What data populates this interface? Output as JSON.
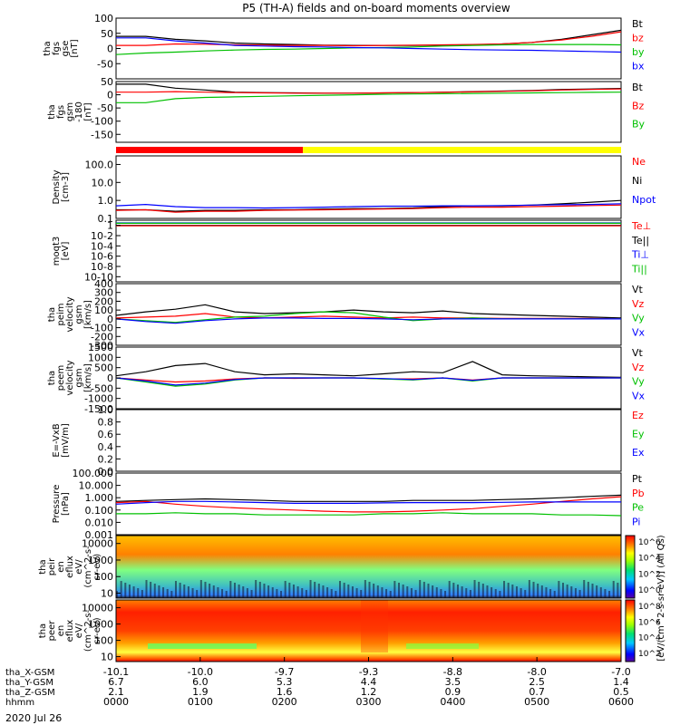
{
  "chart_data": {
    "type": "line",
    "title": "P5 (TH-A) fields and on-board moments overview",
    "time_axis": {
      "ticks": [
        "0000",
        "0100",
        "0200",
        "0300",
        "0400",
        "0500",
        "0600"
      ],
      "rows": [
        {
          "label": "tha_X-GSM",
          "values": [
            "-10.1",
            "-10.0",
            "-9.7",
            "-9.3",
            "-8.8",
            "-8.0",
            "-7.0"
          ]
        },
        {
          "label": "tha_Y-GSM",
          "values": [
            "6.7",
            "6.0",
            "5.3",
            "4.4",
            "3.5",
            "2.5",
            "1.4"
          ]
        },
        {
          "label": "tha_Z-GSM",
          "values": [
            "2.1",
            "1.9",
            "1.6",
            "1.2",
            "0.9",
            "0.7",
            "0.5"
          ]
        },
        {
          "label": "hhmm",
          "values": []
        }
      ],
      "date": "2020 Jul 26"
    },
    "panels": [
      {
        "id": "fgs",
        "ylabel": [
          "tha",
          "fgs",
          "gse",
          "[nT]"
        ],
        "scale": "linear",
        "ticks": [
          "100",
          "50",
          "0",
          "-50"
        ],
        "yrange": [
          -100,
          100
        ],
        "legend": [
          {
            "name": "Bt",
            "color": "#000000"
          },
          {
            "name": "bz",
            "color": "#ff0000"
          },
          {
            "name": "by",
            "color": "#00c000"
          },
          {
            "name": "bx",
            "color": "#0000ff"
          }
        ]
      },
      {
        "id": "fgs_gsm",
        "ylabel": [
          "tha",
          "fgs",
          "gsm",
          "-180",
          " [nT]"
        ],
        "scale": "linear",
        "ticks": [
          "50",
          "0",
          "-50",
          "-100",
          "-150"
        ],
        "yrange": [
          -180,
          50
        ],
        "legend": [
          {
            "name": "Bt",
            "color": "#000000"
          },
          {
            "name": "Bz",
            "color": "#ff0000"
          },
          {
            "name": "By",
            "color": "#00c000"
          }
        ]
      },
      {
        "id": "density",
        "ylabel": [
          "Density",
          "[cm-3]"
        ],
        "scale": "log",
        "ticks": [
          "100.0",
          "10.0",
          "1.0",
          "0.1"
        ],
        "yrange": [
          0.1,
          300
        ],
        "legend": [
          {
            "name": "Ne",
            "color": "#ff0000"
          },
          {
            "name": "Ni",
            "color": "#000000"
          },
          {
            "name": "Npot",
            "color": "#0000ff"
          }
        ]
      },
      {
        "id": "temp",
        "ylabel": [
          "moqt3",
          "[eV]"
        ],
        "scale": "log",
        "ticks": [
          "1",
          "10-2",
          "10-4",
          "10-6",
          "10-8",
          "10-10"
        ],
        "yrange": [
          1e-11,
          10
        ],
        "legend": [
          {
            "name": "Te⊥",
            "color": "#ff0000"
          },
          {
            "name": "Te||",
            "color": "#000000"
          },
          {
            "name": "Ti⊥",
            "color": "#0000ff"
          },
          {
            "name": "Ti||",
            "color": "#00c000"
          }
        ]
      },
      {
        "id": "vi",
        "ylabel": [
          "tha",
          "peim",
          "velocity",
          "gsm",
          "[km/s]"
        ],
        "scale": "linear",
        "ticks": [
          "400",
          "300",
          "200",
          "100",
          "0",
          "-100",
          "-200",
          "-300"
        ],
        "yrange": [
          -300,
          400
        ],
        "legend": [
          {
            "name": "Vt",
            "color": "#000000"
          },
          {
            "name": "Vz",
            "color": "#ff0000"
          },
          {
            "name": "Vy",
            "color": "#00c000"
          },
          {
            "name": "Vx",
            "color": "#0000ff"
          }
        ]
      },
      {
        "id": "ve",
        "ylabel": [
          "tha",
          "peem",
          "velocity",
          "gsm",
          "[km/s]"
        ],
        "scale": "linear",
        "ticks": [
          "1500",
          "1000",
          "500",
          "0",
          "-500",
          "-1000",
          "-1500"
        ],
        "yrange": [
          -1500,
          1500
        ],
        "legend": [
          {
            "name": "Vt",
            "color": "#000000"
          },
          {
            "name": "Vz",
            "color": "#ff0000"
          },
          {
            "name": "Vy",
            "color": "#00c000"
          },
          {
            "name": "Vx",
            "color": "#0000ff"
          }
        ]
      },
      {
        "id": "efield",
        "ylabel": [
          "E=-VxB",
          "[mV/m]"
        ],
        "scale": "linear",
        "ticks": [
          "1.0",
          "0.8",
          "0.6",
          "0.4",
          "0.2",
          "0.0"
        ],
        "yrange": [
          0,
          1
        ],
        "legend": [
          {
            "name": "Ez",
            "color": "#ff0000"
          },
          {
            "name": "Ey",
            "color": "#00c000"
          },
          {
            "name": "Ex",
            "color": "#0000ff"
          }
        ]
      },
      {
        "id": "pressure",
        "ylabel": [
          "Pressure",
          "[nPa]"
        ],
        "scale": "log",
        "ticks": [
          "100.000",
          "10.000",
          "1.000",
          "0.100",
          "0.010",
          "0.001"
        ],
        "yrange": [
          0.001,
          100
        ],
        "legend": [
          {
            "name": "Pt",
            "color": "#000000"
          },
          {
            "name": "Pb",
            "color": "#ff0000"
          },
          {
            "name": "Pe",
            "color": "#00c000"
          },
          {
            "name": "Pi",
            "color": "#0000ff"
          }
        ]
      },
      {
        "id": "ion_spec",
        "ylabel": [
          "tha",
          "peir",
          "en",
          "eflux",
          "eV/",
          "(cm^2-s-",
          "sr-eV)"
        ],
        "scale": "log",
        "ticks": [
          "10000",
          "1000",
          "100",
          "10"
        ],
        "yrange": [
          5,
          30000
        ]
      },
      {
        "id": "el_spec",
        "ylabel": [
          "tha",
          "peer",
          "en",
          "eflux",
          "eV/",
          "(cm^2-s-",
          "sr-eV)"
        ],
        "scale": "log",
        "ticks": [
          "10000",
          "1000",
          "100",
          "10"
        ],
        "yrange": [
          5,
          30000
        ]
      }
    ],
    "colorbar": {
      "ion_ticks": [
        "10^6",
        "10^4",
        "10^2",
        "10^0"
      ],
      "el_ticks": [
        "10^8",
        "10^6",
        "10^4",
        "10^2"
      ],
      "label": "[eV/(cm^2-s-sr-eV)] (All Qs)"
    },
    "mode_bar": {
      "segments": [
        {
          "color": "#ff0000",
          "start_frac": 0,
          "end_frac": 0.37
        },
        {
          "color": "#ffff00",
          "start_frac": 0.37,
          "end_frac": 1
        }
      ]
    },
    "series": [
      {
        "panel": "fgs",
        "name": "Bt",
        "color": "#000000",
        "values": [
          40,
          40,
          30,
          25,
          18,
          15,
          13,
          11,
          10,
          10,
          10,
          11,
          12,
          15,
          20,
          30,
          45,
          60
        ]
      },
      {
        "panel": "fgs",
        "name": "bz",
        "color": "#ff0000",
        "values": [
          10,
          10,
          15,
          14,
          12,
          11,
          10,
          10,
          9,
          10,
          11,
          12,
          13,
          15,
          20,
          28,
          40,
          55
        ]
      },
      {
        "panel": "fgs",
        "name": "by",
        "color": "#00c000",
        "values": [
          -20,
          -15,
          -12,
          -8,
          -5,
          -3,
          -2,
          0,
          2,
          3,
          5,
          8,
          10,
          12,
          13,
          13,
          13,
          12
        ]
      },
      {
        "panel": "fgs",
        "name": "bx",
        "color": "#0000ff",
        "values": [
          35,
          35,
          25,
          18,
          10,
          8,
          6,
          5,
          3,
          2,
          0,
          -2,
          -4,
          -5,
          -6,
          -8,
          -10,
          -12
        ]
      },
      {
        "panel": "fgs_gsm",
        "name": "Bt",
        "color": "#000000",
        "values": [
          40,
          40,
          25,
          18,
          10,
          8,
          7,
          6,
          6,
          7,
          8,
          10,
          12,
          14,
          16,
          20,
          22,
          24
        ]
      },
      {
        "panel": "fgs_gsm",
        "name": "Bz",
        "color": "#ff0000",
        "values": [
          10,
          10,
          12,
          10,
          8,
          7,
          6,
          6,
          6,
          7,
          8,
          9,
          11,
          13,
          15,
          18,
          20,
          22
        ]
      },
      {
        "panel": "fgs_gsm",
        "name": "By",
        "color": "#00c000",
        "values": [
          -30,
          -30,
          -15,
          -10,
          -8,
          -6,
          -4,
          -2,
          0,
          2,
          3,
          4,
          5,
          6,
          7,
          8,
          9,
          10
        ]
      },
      {
        "panel": "density",
        "name": "Ni",
        "color": "#000000",
        "values": [
          0.3,
          0.3,
          0.25,
          0.28,
          0.28,
          0.3,
          0.3,
          0.33,
          0.35,
          0.35,
          0.38,
          0.45,
          0.5,
          0.5,
          0.55,
          0.65,
          0.8,
          1.0
        ]
      },
      {
        "panel": "density",
        "name": "Ne",
        "color": "#ff0000",
        "values": [
          0.28,
          0.3,
          0.22,
          0.25,
          0.25,
          0.28,
          0.29,
          0.3,
          0.32,
          0.33,
          0.35,
          0.4,
          0.42,
          0.42,
          0.45,
          0.48,
          0.52,
          0.55
        ]
      },
      {
        "panel": "density",
        "name": "Npot",
        "color": "#0000ff",
        "values": [
          0.5,
          0.6,
          0.45,
          0.4,
          0.4,
          0.38,
          0.4,
          0.42,
          0.45,
          0.48,
          0.48,
          0.5,
          0.5,
          0.52,
          0.55,
          0.58,
          0.6,
          0.65
        ]
      },
      {
        "panel": "temp",
        "name": "Te||",
        "color": "#000000",
        "values": [
          1,
          1,
          1,
          1,
          1,
          1,
          1,
          1,
          1,
          1,
          1,
          1,
          1,
          1,
          1,
          1,
          1,
          1
        ]
      },
      {
        "panel": "temp",
        "name": "Ti⊥",
        "color": "#0000ff",
        "values": [
          3,
          3,
          3,
          3,
          3,
          3,
          3,
          3,
          3,
          3,
          3,
          3,
          3,
          3,
          3,
          3,
          3,
          3
        ]
      },
      {
        "panel": "temp",
        "name": "Ti||",
        "color": "#00c000",
        "values": [
          2.5,
          2.5,
          2.5,
          2.5,
          2.5,
          2.5,
          2.5,
          2.5,
          2.5,
          2.5,
          2.5,
          2.5,
          2.5,
          2.5,
          2.5,
          2.5,
          2.5,
          2.5
        ]
      },
      {
        "panel": "temp",
        "name": "Te⊥",
        "color": "#ff0000",
        "values": [
          0.8,
          0.8,
          0.8,
          0.8,
          0.8,
          0.8,
          0.8,
          0.8,
          0.8,
          0.8,
          0.8,
          0.8,
          0.8,
          0.8,
          0.8,
          0.8,
          0.8,
          0.8
        ]
      },
      {
        "panel": "vi",
        "name": "Vt",
        "color": "#000000",
        "values": [
          40,
          80,
          110,
          160,
          80,
          60,
          70,
          80,
          100,
          80,
          70,
          90,
          60,
          50,
          40,
          30,
          20,
          10
        ]
      },
      {
        "panel": "vi",
        "name": "Vz",
        "color": "#ff0000",
        "values": [
          10,
          20,
          30,
          60,
          20,
          10,
          20,
          30,
          20,
          10,
          20,
          10,
          10,
          5,
          5,
          5,
          5,
          0
        ]
      },
      {
        "panel": "vi",
        "name": "Vy",
        "color": "#00c000",
        "values": [
          0,
          -20,
          -40,
          -10,
          20,
          30,
          60,
          80,
          70,
          20,
          -20,
          0,
          10,
          0,
          0,
          0,
          0,
          0
        ]
      },
      {
        "panel": "vi",
        "name": "Vx",
        "color": "#0000ff",
        "values": [
          0,
          -30,
          -50,
          -20,
          0,
          10,
          10,
          5,
          5,
          0,
          -10,
          0,
          0,
          0,
          0,
          0,
          0,
          0
        ]
      },
      {
        "panel": "ve",
        "name": "Vt",
        "color": "#000000",
        "values": [
          100,
          300,
          600,
          700,
          300,
          150,
          200,
          150,
          100,
          200,
          300,
          250,
          800,
          150,
          100,
          80,
          50,
          30
        ]
      },
      {
        "panel": "ve",
        "name": "Vz",
        "color": "#ff0000",
        "values": [
          0,
          -100,
          -200,
          -150,
          -50,
          0,
          -20,
          0,
          0,
          -50,
          -50,
          0,
          -100,
          0,
          0,
          0,
          0,
          0
        ]
      },
      {
        "panel": "ve",
        "name": "Vy",
        "color": "#00c000",
        "values": [
          0,
          -200,
          -400,
          -300,
          -100,
          0,
          0,
          0,
          0,
          -50,
          -100,
          0,
          -150,
          0,
          0,
          0,
          0,
          0
        ]
      },
      {
        "panel": "ve",
        "name": "Vx",
        "color": "#0000ff",
        "values": [
          0,
          -150,
          -350,
          -250,
          -80,
          0,
          0,
          0,
          0,
          -30,
          -80,
          0,
          -120,
          0,
          0,
          0,
          0,
          0
        ]
      },
      {
        "panel": "pressure",
        "name": "Pt",
        "color": "#000000",
        "values": [
          0.5,
          0.6,
          0.7,
          0.8,
          0.7,
          0.6,
          0.5,
          0.5,
          0.5,
          0.5,
          0.6,
          0.6,
          0.6,
          0.7,
          0.8,
          1.0,
          1.3,
          1.6
        ]
      },
      {
        "panel": "pressure",
        "name": "Pb",
        "color": "#ff0000",
        "values": [
          0.4,
          0.5,
          0.3,
          0.2,
          0.15,
          0.12,
          0.1,
          0.08,
          0.07,
          0.07,
          0.08,
          0.1,
          0.13,
          0.2,
          0.3,
          0.5,
          0.8,
          1.2
        ]
      },
      {
        "panel": "pressure",
        "name": "Pe",
        "color": "#00c000",
        "values": [
          0.05,
          0.05,
          0.06,
          0.05,
          0.05,
          0.04,
          0.04,
          0.04,
          0.04,
          0.05,
          0.05,
          0.06,
          0.05,
          0.05,
          0.05,
          0.04,
          0.04,
          0.035
        ]
      },
      {
        "panel": "pressure",
        "name": "Pi",
        "color": "#0000ff",
        "values": [
          0.3,
          0.4,
          0.5,
          0.5,
          0.45,
          0.4,
          0.35,
          0.35,
          0.35,
          0.38,
          0.4,
          0.4,
          0.4,
          0.42,
          0.45,
          0.45,
          0.45,
          0.45
        ]
      }
    ]
  }
}
